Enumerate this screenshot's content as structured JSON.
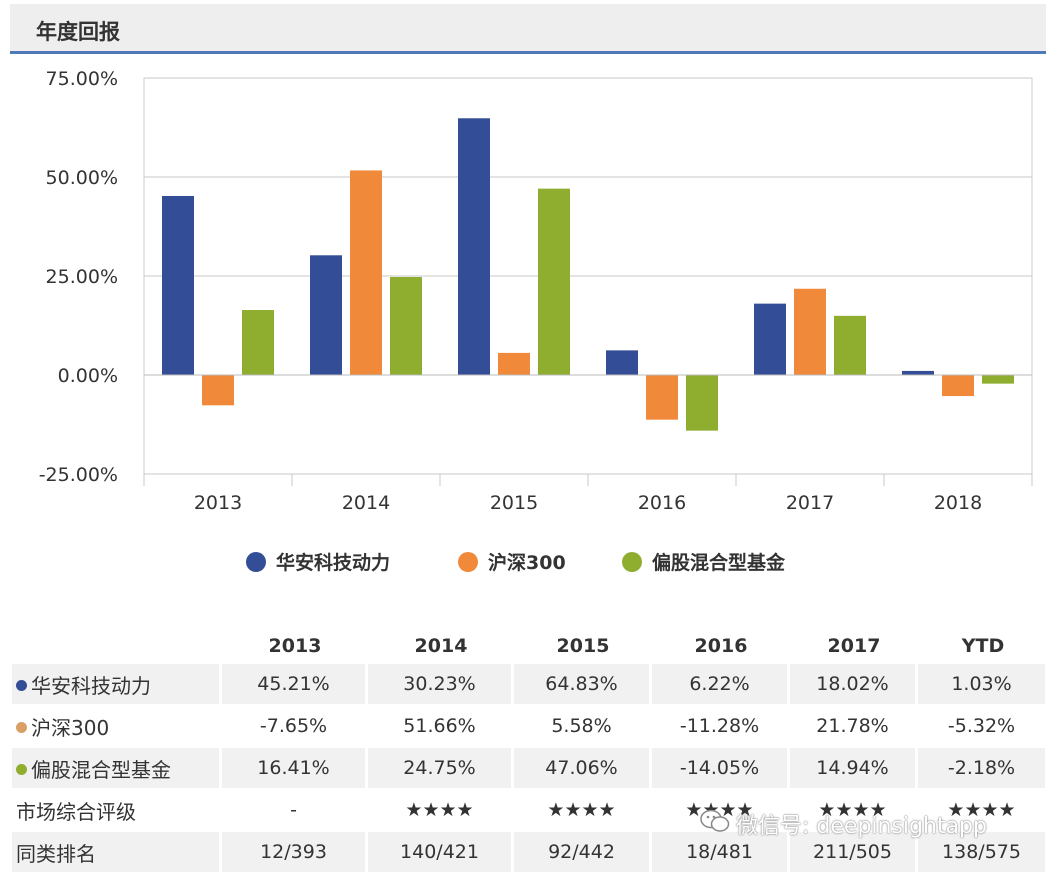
{
  "header": {
    "title": "年度回报"
  },
  "colors": {
    "fund": "#334d96",
    "index": "#f0893a",
    "peer": "#8fad2f",
    "star": "#e8332d"
  },
  "chart_data": {
    "type": "bar",
    "title": "年度回报",
    "categories": [
      "2013",
      "2014",
      "2015",
      "2016",
      "2017",
      "2018"
    ],
    "ylim": [
      -25,
      75
    ],
    "yticks": [
      75,
      50,
      25,
      0,
      -25
    ],
    "ytick_labels": [
      "75.00%",
      "50.00%",
      "25.00%",
      "0.00%",
      "-25.00%"
    ],
    "series": [
      {
        "name": "华安科技动力",
        "values": [
          45.21,
          30.23,
          64.83,
          6.22,
          18.02,
          1.03
        ]
      },
      {
        "name": "沪深300",
        "values": [
          -7.65,
          51.66,
          5.58,
          -11.28,
          21.78,
          -5.32
        ]
      },
      {
        "name": "偏股混合型基金",
        "values": [
          16.41,
          24.75,
          47.06,
          -14.05,
          14.94,
          -2.18
        ]
      }
    ],
    "legend_position": "bottom-center",
    "grid": true
  },
  "legend": [
    {
      "label": "华安科技动力",
      "color": "#334d96"
    },
    {
      "label": "沪深300",
      "color": "#f0893a"
    },
    {
      "label": "偏股混合型基金",
      "color": "#8fad2f"
    }
  ],
  "table": {
    "headers": [
      "",
      "2013",
      "2014",
      "2015",
      "2016",
      "2017",
      "YTD"
    ],
    "rows": [
      {
        "label": "华安科技动力",
        "dot": "#334d96",
        "cells": [
          "45.21%",
          "30.23%",
          "64.83%",
          "6.22%",
          "18.02%",
          "1.03%"
        ]
      },
      {
        "label": "沪深300",
        "dot": "#d9a066",
        "cells": [
          "-7.65%",
          "51.66%",
          "5.58%",
          "-11.28%",
          "21.78%",
          "-5.32%"
        ]
      },
      {
        "label": "偏股混合型基金",
        "dot": "#8fad2f",
        "cells": [
          "16.41%",
          "24.75%",
          "47.06%",
          "-14.05%",
          "14.94%",
          "-2.18%"
        ]
      }
    ],
    "rating": {
      "label": "市场综合评级",
      "cells": [
        "-",
        "★★★★",
        "★★★★",
        "★★★★",
        "★★★★",
        "★★★★"
      ]
    },
    "rank": {
      "label": "同类排名",
      "cells": [
        "12/393",
        "140/421",
        "92/442",
        "18/481",
        "211/505",
        "138/575"
      ]
    }
  },
  "watermark": {
    "text": "微信号: deepinsightapp"
  }
}
